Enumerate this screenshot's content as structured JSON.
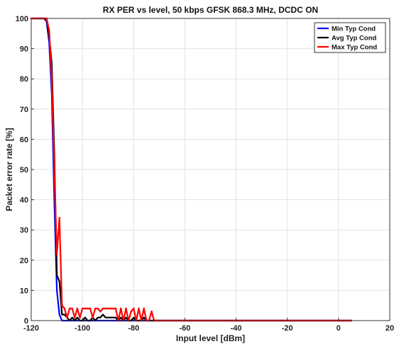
{
  "chart_data": {
    "type": "line",
    "title": "RX PER vs level, 50 kbps GFSK 868.3 MHz, DCDC ON",
    "xlabel": "Input level [dBm]",
    "ylabel": "Packet error rate [%]",
    "xlim": [
      -120,
      20
    ],
    "ylim": [
      0,
      100
    ],
    "xticks": [
      -120,
      -100,
      -80,
      -60,
      -40,
      -20,
      0,
      20
    ],
    "yticks": [
      0,
      10,
      20,
      30,
      40,
      50,
      60,
      70,
      80,
      90,
      100
    ],
    "grid": true,
    "legend_position": "top-right",
    "series": [
      {
        "name": "Min Typ Cond",
        "color": "#0000ff",
        "x": [
          -120,
          -119,
          -118,
          -117,
          -116,
          -115,
          -114,
          -113,
          -112,
          -111,
          -110,
          -109,
          -108,
          -107,
          -106,
          -105,
          -104,
          -103,
          -102,
          -101,
          -100,
          -95,
          -90,
          -85,
          -80,
          -75,
          -70,
          -60,
          -40,
          -20,
          0,
          5
        ],
        "y": [
          100,
          100,
          100,
          100,
          100,
          100,
          99,
          92,
          75,
          40,
          10,
          2,
          0,
          0,
          0,
          0,
          0,
          0,
          0,
          0,
          0,
          0,
          0,
          0,
          0,
          0,
          0,
          0,
          0,
          0,
          0,
          0
        ]
      },
      {
        "name": "Avg Typ Cond",
        "color": "#000000",
        "x": [
          -120,
          -119,
          -118,
          -117,
          -116,
          -115,
          -114,
          -113,
          -112,
          -111,
          -110,
          -109,
          -108,
          -107,
          -106,
          -105,
          -104,
          -103,
          -102,
          -101,
          -100,
          -99,
          -98,
          -97,
          -96,
          -95,
          -94,
          -93,
          -92,
          -91,
          -90,
          -89,
          -88,
          -87,
          -86,
          -85,
          -84,
          -83,
          -82,
          -81,
          -80,
          -79,
          -78,
          -77,
          -76,
          -75,
          -74,
          -73,
          -72,
          -70,
          -60,
          -40,
          -20,
          0,
          5
        ],
        "y": [
          100,
          100,
          100,
          100,
          100,
          100,
          100,
          94,
          85,
          55,
          15,
          13,
          2,
          2,
          1,
          0,
          1,
          0,
          1,
          0,
          0,
          1,
          0,
          0,
          1,
          0,
          1,
          1,
          2,
          1,
          1,
          1,
          1,
          1,
          0,
          1,
          0,
          1,
          0,
          0,
          1,
          0,
          0,
          0,
          1,
          0,
          0,
          0,
          0,
          0,
          0,
          0,
          0,
          0,
          0
        ]
      },
      {
        "name": "Max Typ Cond",
        "color": "#ff0000",
        "x": [
          -120,
          -119,
          -118,
          -117,
          -116,
          -115,
          -114,
          -113,
          -112,
          -111,
          -110,
          -109,
          -108,
          -107,
          -106,
          -105,
          -104,
          -103,
          -102,
          -101,
          -100,
          -99,
          -98,
          -97,
          -96,
          -95,
          -94,
          -93,
          -92,
          -91,
          -90,
          -89,
          -88,
          -87,
          -86,
          -85,
          -84,
          -83,
          -82,
          -81,
          -80,
          -79,
          -78,
          -77,
          -76,
          -75,
          -74,
          -73,
          -72,
          -71,
          -70,
          -60,
          -40,
          -20,
          0,
          5
        ],
        "y": [
          100,
          100,
          100,
          100,
          100,
          100,
          100,
          96,
          80,
          50,
          22,
          34,
          5,
          4,
          1,
          4,
          4,
          1,
          4,
          1,
          4,
          4,
          4,
          4,
          1,
          4,
          4,
          3,
          4,
          4,
          4,
          4,
          4,
          4,
          0,
          4,
          0,
          4,
          0,
          3,
          4,
          0,
          4,
          0,
          4,
          0,
          0,
          3,
          0,
          0,
          0,
          0,
          0,
          0,
          0,
          0
        ]
      }
    ]
  }
}
